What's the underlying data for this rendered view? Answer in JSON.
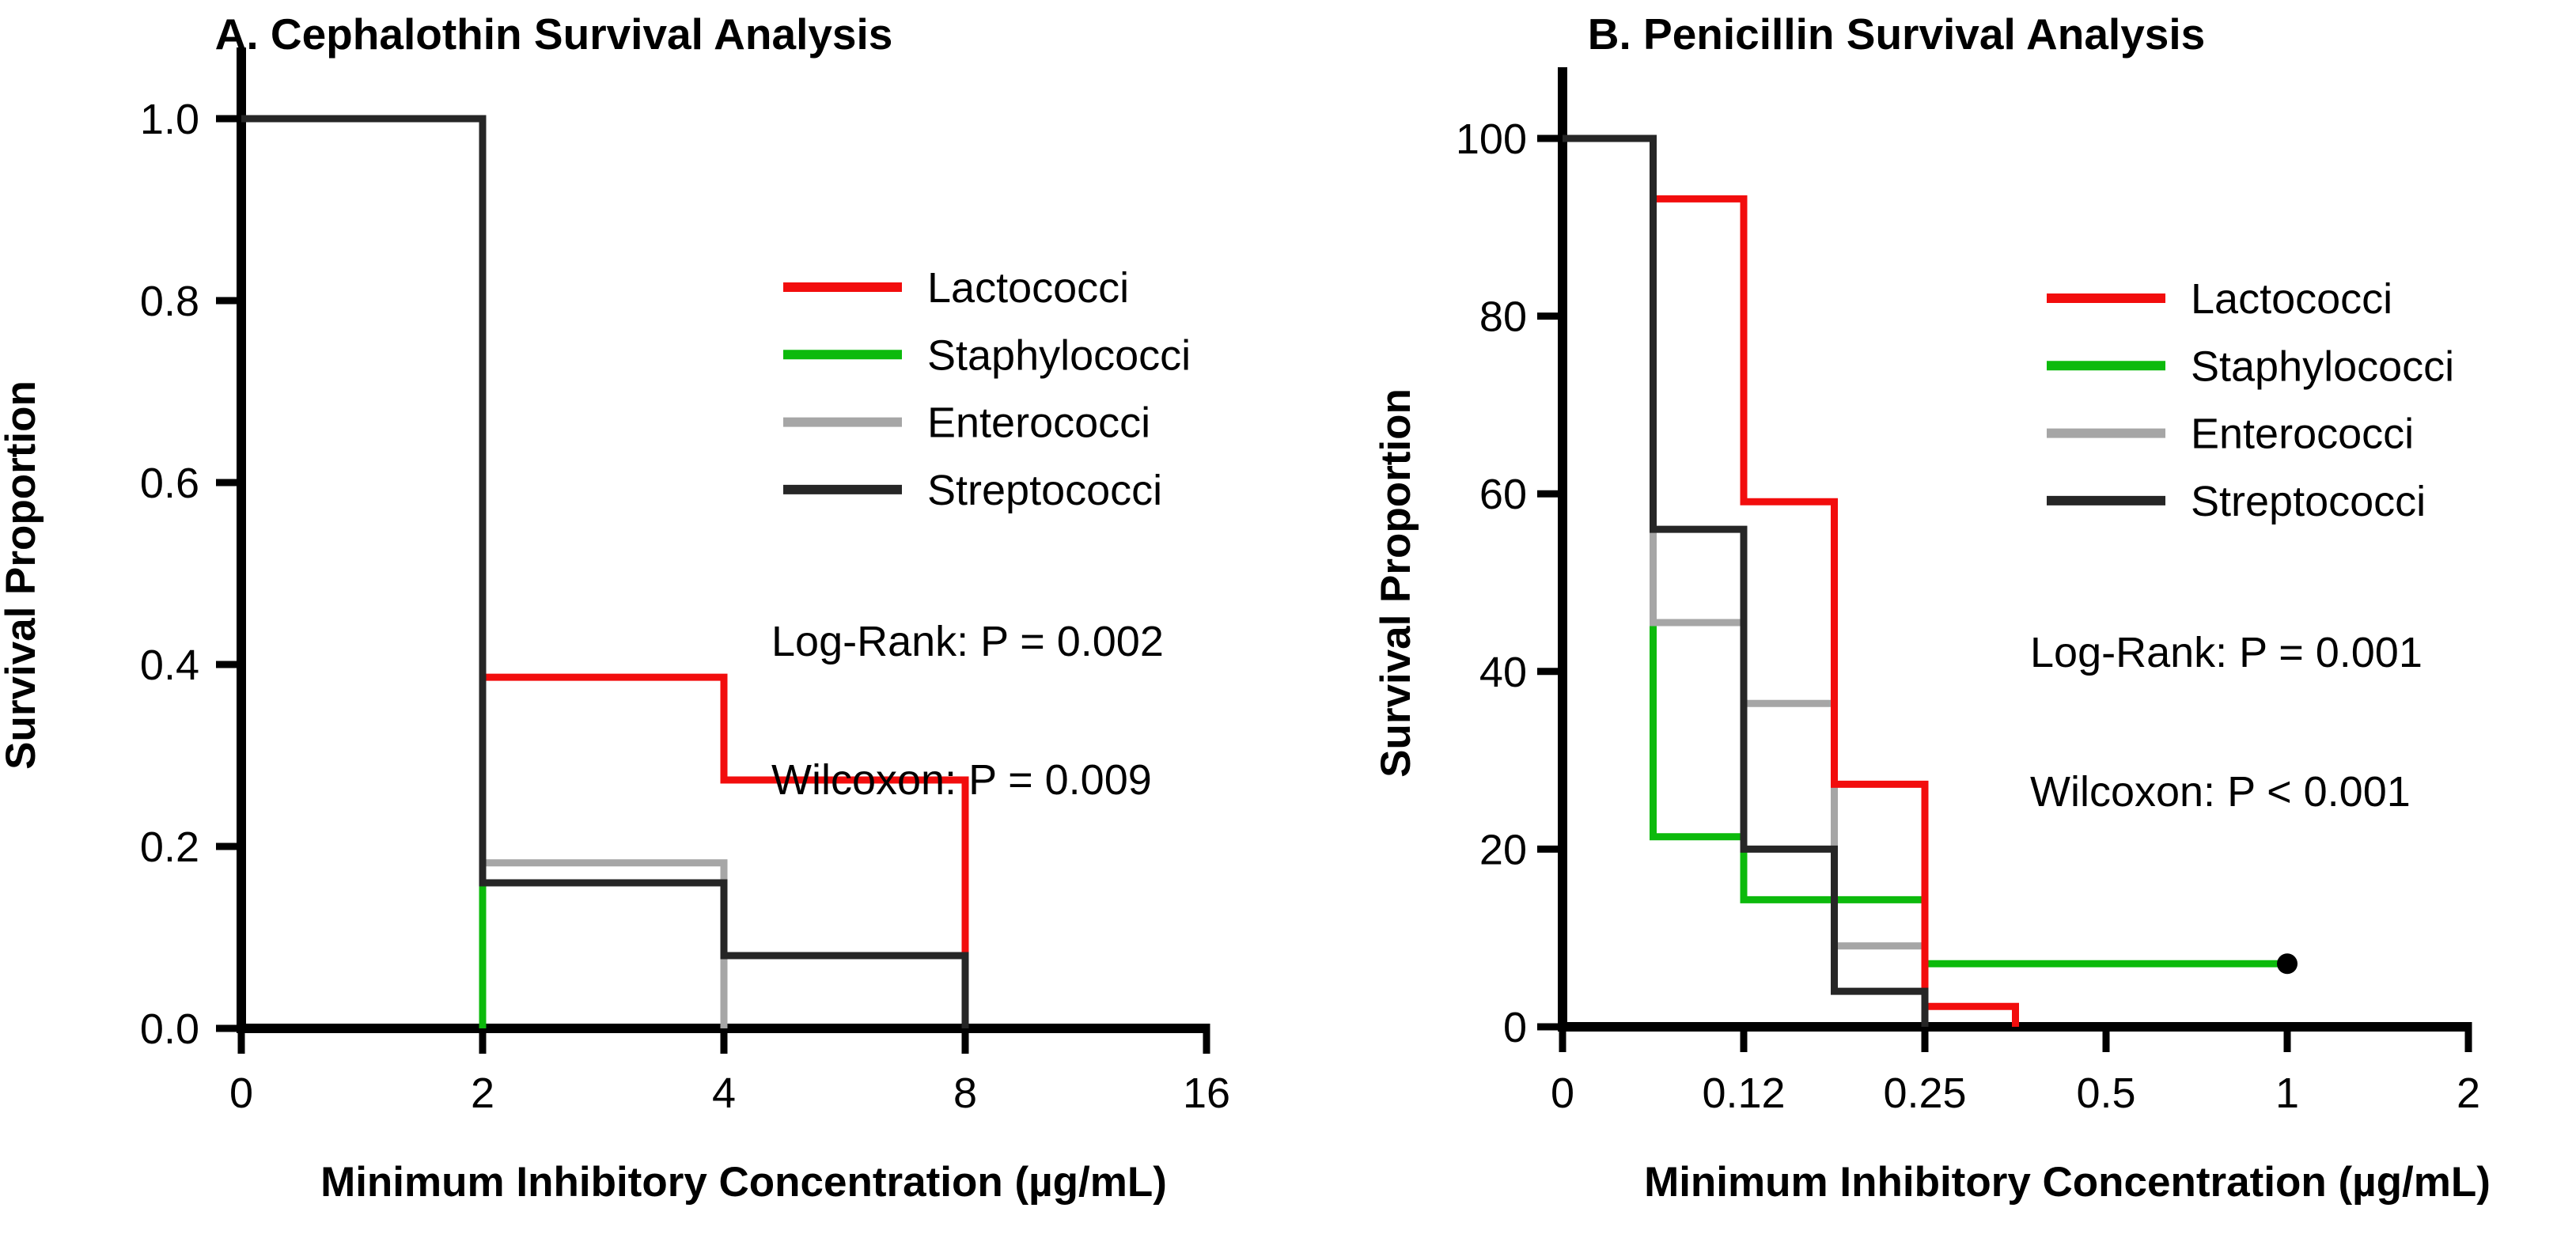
{
  "figure": {
    "background": "#ffffff",
    "text_color": "#000000",
    "marker_color": "#000000"
  },
  "chart_data": [
    {
      "panel": "A",
      "type": "step",
      "title": "A. Cephalothin Survival Analysis",
      "xlabel": "Minimum Inhibitory Concentration (µg/mL)",
      "ylabel": "Survival Proportion",
      "x_scale": "doubling-dilution, equal spacing per 2-fold step",
      "x_tick_labels": [
        "0",
        "2",
        "4",
        "8",
        "16"
      ],
      "x_ticks": [
        0,
        2,
        4,
        8,
        16
      ],
      "y_tick_labels": [
        "1.0",
        "0.8",
        "0.6",
        "0.4",
        "0.2",
        "0.0"
      ],
      "y_ticks": [
        1.0,
        0.8,
        0.6,
        0.4,
        0.2,
        0.0
      ],
      "ylim": [
        0,
        1
      ],
      "grid": false,
      "legend_position": "upper right",
      "legend": [
        "Lactococci",
        "Staphylococci",
        "Enterococci",
        "Streptococci"
      ],
      "stats": {
        "log_rank": "Log-Rank: P = 0.002",
        "wilcoxon": "Wilcoxon: P = 0.009"
      },
      "draw_order": [
        "Staphylococci",
        "Enterococci",
        "Lactococci",
        "Streptococci"
      ],
      "series": [
        {
          "name": "Lactococci",
          "color": "#f20d0d",
          "steps": [
            {
              "mic": 0,
              "s": 1.0
            },
            {
              "mic": 2,
              "s": 0.386
            },
            {
              "mic": 4,
              "s": 0.273
            },
            {
              "mic": 8,
              "s": 0.0
            }
          ],
          "poly": [
            [
              0,
              1.0
            ],
            [
              1,
              1.0
            ],
            [
              1,
              0.386
            ],
            [
              2,
              0.386
            ],
            [
              2,
              0.273
            ],
            [
              3,
              0.273
            ],
            [
              3,
              0.0
            ]
          ]
        },
        {
          "name": "Staphylococci",
          "color": "#0cba0c",
          "steps": [
            {
              "mic": 0,
              "s": 1.0
            },
            {
              "mic": 2,
              "s": 0.0
            }
          ],
          "poly": [
            [
              0,
              1.0
            ],
            [
              1,
              1.0
            ],
            [
              1,
              0.0
            ]
          ]
        },
        {
          "name": "Enterococci",
          "color": "#a6a6a6",
          "steps": [
            {
              "mic": 0,
              "s": 1.0
            },
            {
              "mic": 2,
              "s": 0.182
            },
            {
              "mic": 4,
              "s": 0.0
            }
          ],
          "poly": [
            [
              0,
              1.0
            ],
            [
              1,
              1.0
            ],
            [
              1,
              0.182
            ],
            [
              2,
              0.182
            ],
            [
              2,
              0.0
            ]
          ]
        },
        {
          "name": "Streptococci",
          "color": "#262626",
          "steps": [
            {
              "mic": 0,
              "s": 1.0
            },
            {
              "mic": 2,
              "s": 0.16
            },
            {
              "mic": 4,
              "s": 0.08
            },
            {
              "mic": 8,
              "s": 0.0
            }
          ],
          "poly": [
            [
              0,
              1.0
            ],
            [
              1,
              1.0
            ],
            [
              1,
              0.16
            ],
            [
              2,
              0.16
            ],
            [
              2,
              0.08
            ],
            [
              3,
              0.08
            ],
            [
              3,
              0.0
            ]
          ]
        }
      ]
    },
    {
      "panel": "B",
      "type": "step",
      "title": "B. Penicillin Survival Analysis",
      "xlabel": "Minimum Inhibitory Concentration (µg/mL)",
      "ylabel": "Survival Proportion",
      "x_scale": "doubling-dilution, equal spacing per 2-fold step",
      "x_tick_labels": [
        "0",
        "0.12",
        "0.25",
        "0.5",
        "1",
        "2"
      ],
      "x_ticks": [
        0,
        0.12,
        0.25,
        0.5,
        1,
        2
      ],
      "y_tick_labels": [
        "100",
        "80",
        "60",
        "40",
        "20",
        "0"
      ],
      "y_ticks": [
        100,
        80,
        60,
        40,
        20,
        0
      ],
      "ylim": [
        0,
        100
      ],
      "grid": false,
      "legend_position": "upper right",
      "legend": [
        "Lactococci",
        "Staphylococci",
        "Enterococci",
        "Streptococci"
      ],
      "stats": {
        "log_rank": "Log-Rank: P = 0.001",
        "wilcoxon": "Wilcoxon: P < 0.001"
      },
      "draw_order": [
        "Staphylococci",
        "Enterococci",
        "Lactococci",
        "Streptococci"
      ],
      "series": [
        {
          "name": "Lactococci",
          "color": "#f20d0d",
          "steps": [
            {
              "mic": 0,
              "s": 100
            },
            {
              "mic": 0.06,
              "s": 93.2
            },
            {
              "mic": 0.12,
              "s": 59.1
            },
            {
              "mic": 0.18,
              "s": 27.3
            },
            {
              "mic": 0.25,
              "s": 2.3
            },
            {
              "mic": 0.35,
              "s": 0
            }
          ],
          "poly": [
            [
              0,
              100
            ],
            [
              0.5,
              100
            ],
            [
              0.5,
              93.2
            ],
            [
              1,
              93.2
            ],
            [
              1,
              59.1
            ],
            [
              1.5,
              59.1
            ],
            [
              1.5,
              27.3
            ],
            [
              2,
              27.3
            ],
            [
              2,
              2.3
            ],
            [
              2.5,
              2.3
            ],
            [
              2.5,
              0
            ]
          ]
        },
        {
          "name": "Staphylococci",
          "color": "#0cba0c",
          "steps": [
            {
              "mic": 0,
              "s": 100
            },
            {
              "mic": 0.06,
              "s": 21.4
            },
            {
              "mic": 0.12,
              "s": 14.3
            },
            {
              "mic": 0.25,
              "s": 7.1
            }
          ],
          "poly": [
            [
              0,
              100
            ],
            [
              0.5,
              100
            ],
            [
              0.5,
              21.4
            ],
            [
              1,
              21.4
            ],
            [
              1,
              14.3
            ],
            [
              2,
              14.3
            ],
            [
              2,
              7.1
            ],
            [
              4,
              7.1
            ]
          ],
          "censored": {
            "mic": 1,
            "s": 7.1,
            "u": 4
          }
        },
        {
          "name": "Enterococci",
          "color": "#a6a6a6",
          "steps": [
            {
              "mic": 0,
              "s": 100
            },
            {
              "mic": 0.06,
              "s": 45.5
            },
            {
              "mic": 0.12,
              "s": 36.4
            },
            {
              "mic": 0.18,
              "s": 9.1
            },
            {
              "mic": 0.25,
              "s": 0
            }
          ],
          "poly": [
            [
              0,
              100
            ],
            [
              0.5,
              100
            ],
            [
              0.5,
              45.5
            ],
            [
              1,
              45.5
            ],
            [
              1,
              36.4
            ],
            [
              1.5,
              36.4
            ],
            [
              1.5,
              9.1
            ],
            [
              2,
              9.1
            ],
            [
              2,
              0
            ]
          ]
        },
        {
          "name": "Streptococci",
          "color": "#262626",
          "steps": [
            {
              "mic": 0,
              "s": 100
            },
            {
              "mic": 0.06,
              "s": 56
            },
            {
              "mic": 0.12,
              "s": 20
            },
            {
              "mic": 0.18,
              "s": 4
            },
            {
              "mic": 0.25,
              "s": 0
            }
          ],
          "poly": [
            [
              0,
              100
            ],
            [
              0.5,
              100
            ],
            [
              0.5,
              56
            ],
            [
              1,
              56
            ],
            [
              1,
              20
            ],
            [
              1.5,
              20
            ],
            [
              1.5,
              4
            ],
            [
              2,
              4
            ],
            [
              2,
              0
            ]
          ]
        }
      ]
    }
  ]
}
